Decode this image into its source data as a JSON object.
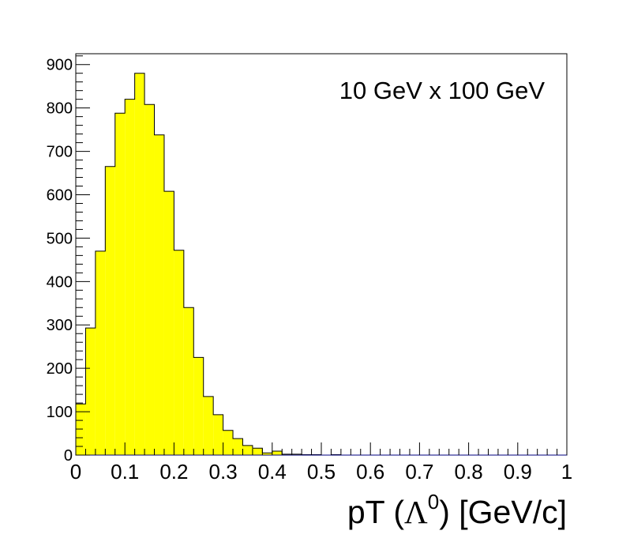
{
  "chart_data": {
    "type": "bar",
    "title": "",
    "annotation": "10 GeV x 100 GeV",
    "xlabel_main": "pT (",
    "xlabel_symbol": "Λ",
    "xlabel_sup": "0",
    "xlabel_tail": ") [GeV/c]",
    "ylabel": "",
    "xlim": [
      0,
      1
    ],
    "ylim": [
      0,
      925
    ],
    "bin_width": 0.02,
    "x_ticks": [
      "0",
      "0.1",
      "0.2",
      "0.3",
      "0.4",
      "0.5",
      "0.6",
      "0.7",
      "0.8",
      "0.9",
      "1"
    ],
    "y_ticks": [
      "0",
      "100",
      "200",
      "300",
      "400",
      "500",
      "600",
      "700",
      "800",
      "900"
    ],
    "fill_color": "#ffff00",
    "line_color": "#000000",
    "values": [
      118,
      293,
      470,
      665,
      788,
      820,
      880,
      808,
      738,
      608,
      472,
      340,
      225,
      135,
      93,
      57,
      38,
      22,
      16,
      5,
      9,
      2,
      2,
      1,
      1,
      0,
      1,
      0,
      0,
      0,
      0,
      0,
      0,
      0,
      0,
      0,
      0,
      0,
      0,
      0,
      0,
      0,
      0,
      0,
      0,
      0,
      0,
      0,
      0,
      0
    ]
  }
}
